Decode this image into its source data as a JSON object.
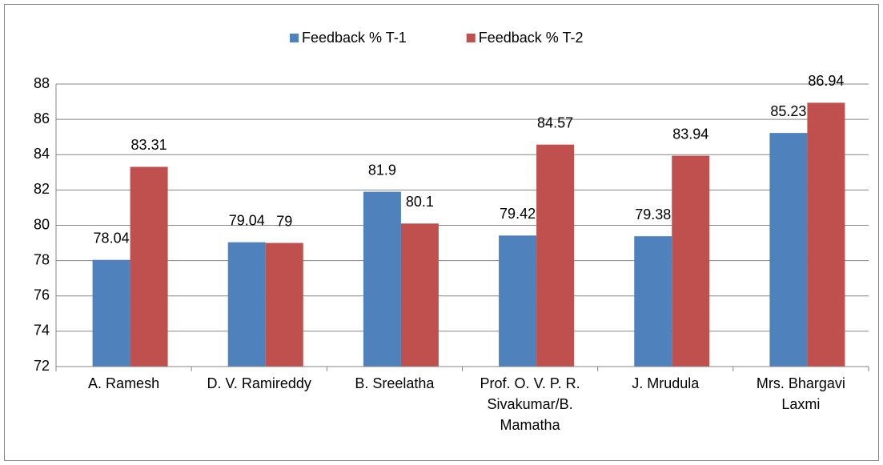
{
  "chart_data": {
    "type": "bar",
    "categories": [
      "A. Ramesh",
      "D. V. Ramireddy",
      "B. Sreelatha",
      "Prof. O. V. P. R. Sivakumar/B. Mamatha",
      "J. Mrudula",
      "Mrs. Bhargavi Laxmi"
    ],
    "series": [
      {
        "name": "Feedback % T-1",
        "color": "#4f81bd",
        "values": [
          78.04,
          79.04,
          81.9,
          79.42,
          79.38,
          85.23
        ]
      },
      {
        "name": "Feedback % T-2",
        "color": "#c0504d",
        "values": [
          83.31,
          79,
          80.1,
          84.57,
          83.94,
          86.94
        ]
      }
    ],
    "ylim": [
      72,
      88
    ],
    "yticks": [
      72,
      74,
      76,
      78,
      80,
      82,
      84,
      86,
      88
    ],
    "grid": true,
    "legend": "top"
  }
}
